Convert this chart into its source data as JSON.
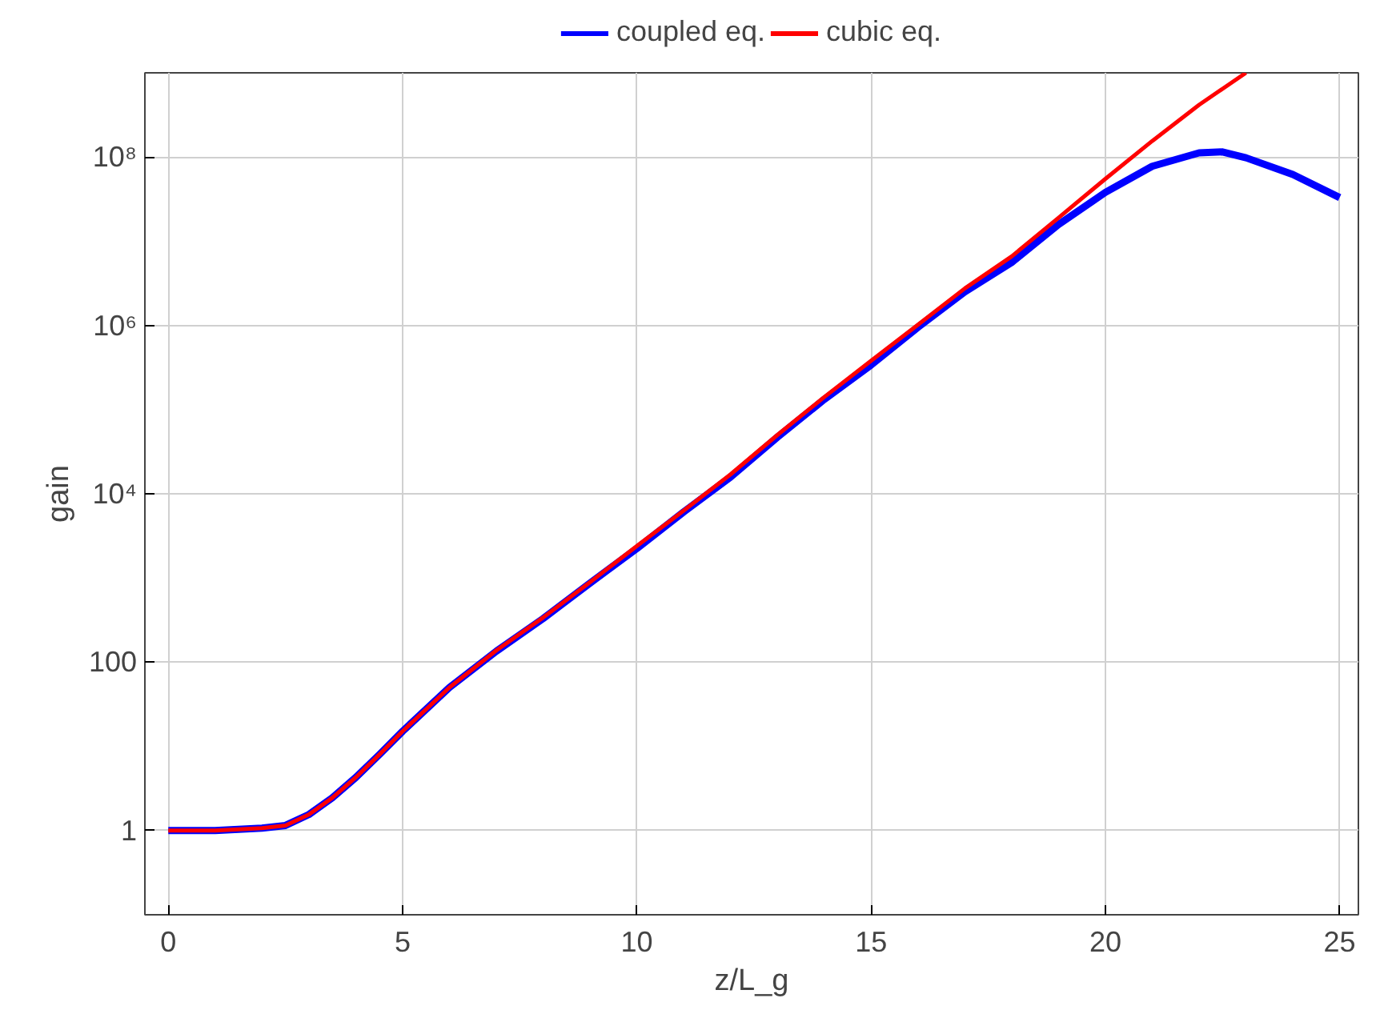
{
  "chart_data": {
    "type": "line",
    "xlabel": "z/L_g",
    "ylabel": "gain",
    "log": "y",
    "grid": true,
    "legend": "top",
    "xlim": [
      -0.5,
      25.4
    ],
    "ylim": [
      0.1,
      1000000000
    ],
    "xticks": [
      0,
      5,
      10,
      15,
      20,
      25
    ],
    "yticks": [
      1,
      100,
      {
        "value": 10000,
        "label": "10⁴"
      },
      {
        "value": 1000000,
        "label": "10⁶"
      },
      {
        "value": 100000000,
        "label": "10⁸"
      }
    ],
    "series": [
      {
        "name": "coupled eq.",
        "color": "#0000ff",
        "x": [
          0,
          1,
          2,
          2.5,
          3,
          3.5,
          4,
          4.5,
          5,
          6,
          7,
          8,
          9,
          10,
          11,
          12,
          13,
          14,
          15,
          16,
          17,
          18,
          19,
          20,
          21,
          22,
          22.5,
          23,
          24,
          25
        ],
        "values": [
          1,
          1,
          1.07,
          1.15,
          1.55,
          2.45,
          4.27,
          7.94,
          15.1,
          50.1,
          135,
          330,
          870,
          2240,
          6100,
          15800,
          47000,
          132000,
          339000,
          950000,
          2500000,
          5600000,
          15800000,
          38000000,
          77600000,
          112000000,
          115000000,
          98000000,
          62000000,
          33000000
        ]
      },
      {
        "name": "cubic eq.",
        "color": "#ff0000",
        "x": [
          0,
          1,
          2,
          2.5,
          3,
          3.5,
          4,
          4.5,
          5,
          6,
          7,
          8,
          9,
          10,
          11,
          12,
          13,
          14,
          15,
          16,
          17,
          18,
          19,
          20,
          21,
          22,
          23
        ],
        "values": [
          1,
          1,
          1.07,
          1.15,
          1.55,
          2.45,
          4.27,
          7.94,
          15.1,
          50.1,
          138,
          339,
          890,
          2400,
          6300,
          17000,
          50000,
          141000,
          380000,
          1020000,
          2750000,
          6600000,
          19000000,
          55000000,
          155000000,
          417000000,
          1000000000
        ]
      }
    ]
  }
}
